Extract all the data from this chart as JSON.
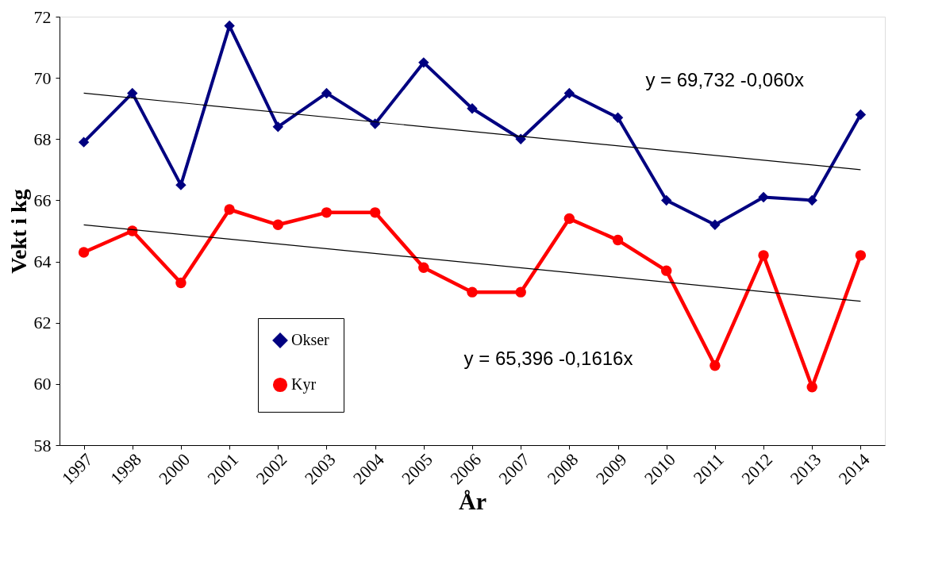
{
  "chart_data": {
    "type": "line",
    "xlabel": "År",
    "ylabel": "Vekt i kg",
    "categories": [
      "1997",
      "1998",
      "2000",
      "2001",
      "2002",
      "2003",
      "2004",
      "2005",
      "2006",
      "2007",
      "2008",
      "2009",
      "2010",
      "2011",
      "2012",
      "2013",
      "2014"
    ],
    "series": [
      {
        "name": "Okser",
        "color": "#000080",
        "marker": "diamond",
        "values": [
          67.9,
          69.5,
          66.5,
          71.7,
          68.4,
          69.5,
          68.5,
          70.5,
          69.0,
          68.0,
          69.5,
          68.7,
          66.0,
          65.2,
          66.1,
          66.0,
          68.8
        ]
      },
      {
        "name": "Kyr",
        "color": "#ff0000",
        "marker": "circle",
        "values": [
          64.3,
          65.0,
          63.3,
          65.7,
          65.2,
          65.6,
          65.6,
          63.8,
          63.0,
          63.0,
          65.4,
          64.7,
          63.7,
          60.6,
          64.2,
          59.9,
          64.2
        ]
      },
      {
        "type": "line",
        "color": "#000000",
        "marker": "none",
        "values": [
          69.5,
          null,
          null,
          null,
          null,
          null,
          null,
          null,
          null,
          null,
          null,
          null,
          null,
          null,
          null,
          null,
          67.0
        ]
      },
      {
        "type": "line",
        "color": "#000000",
        "marker": "none",
        "values": [
          65.2,
          null,
          null,
          null,
          null,
          null,
          null,
          null,
          null,
          null,
          null,
          null,
          null,
          null,
          null,
          null,
          62.7
        ]
      }
    ],
    "ylim": [
      58,
      72
    ],
    "yticks": [
      58,
      60,
      62,
      64,
      66,
      68,
      70,
      72
    ],
    "grid": false,
    "legend": "bottom left",
    "annotations": [
      "y = 69,732 -0,060x",
      "y = 65,396 -0,1616x"
    ]
  }
}
